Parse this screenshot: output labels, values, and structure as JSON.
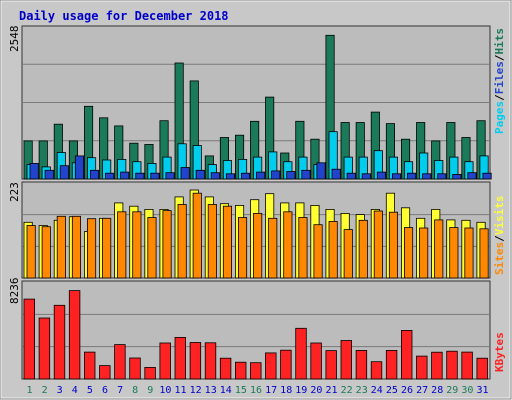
{
  "chart_data": {
    "type": "bar",
    "title": "Daily usage for December 2018",
    "categories": [
      "1",
      "2",
      "3",
      "4",
      "5",
      "6",
      "7",
      "8",
      "9",
      "10",
      "11",
      "12",
      "13",
      "14",
      "15",
      "16",
      "17",
      "18",
      "19",
      "20",
      "21",
      "22",
      "23",
      "24",
      "25",
      "26",
      "27",
      "28",
      "29",
      "30",
      "31"
    ],
    "weekend_days": [
      "1",
      "2",
      "8",
      "9",
      "15",
      "16",
      "22",
      "23",
      "29",
      "30"
    ],
    "colors": {
      "title": "#0000cc",
      "background": "#bcbcbc",
      "hits": "#1a7a5a",
      "files": "#00ccee",
      "pages": "#2244cc",
      "visits": "#ffff33",
      "sites": "#ff8800",
      "kbytes": "#ff2222",
      "weekend_label": "#1a7a5a",
      "weekday_label": "#0000cc"
    },
    "panels": [
      {
        "id": "hits",
        "ymax_label": "2548",
        "ylim": [
          0,
          2548
        ],
        "legend": [
          {
            "text": "Pages",
            "color": "#00ccee"
          },
          {
            "text": "Files",
            "color": "#2244cc"
          },
          {
            "text": "Hits",
            "color": "#1a7a5a"
          }
        ],
        "series": [
          {
            "name": "Hits",
            "values": [
              660,
              660,
              950,
              660,
              1260,
              1060,
              920,
              620,
              600,
              1010,
              2010,
              1700,
              400,
              720,
              760,
              1000,
              1420,
              450,
              1000,
              690,
              2490,
              980,
              980,
              1160,
              960,
              690,
              980,
              660,
              980,
              720,
              1010
            ]
          },
          {
            "name": "Files",
            "values": [
              250,
              210,
              460,
              280,
              370,
              330,
              340,
              300,
              270,
              380,
              610,
              580,
              250,
              320,
              340,
              380,
              470,
              300,
              380,
              250,
              820,
              380,
              380,
              490,
              380,
              300,
              450,
              320,
              380,
              300,
              400
            ]
          },
          {
            "name": "Pages",
            "values": [
              270,
              150,
              230,
              400,
              150,
              100,
              120,
              100,
              100,
              110,
              200,
              150,
              110,
              90,
              100,
              120,
              140,
              130,
              150,
              280,
              170,
              100,
              90,
              120,
              90,
              100,
              90,
              90,
              80,
              110,
              100
            ]
          }
        ]
      },
      {
        "id": "visits",
        "ymax_label": "223",
        "ylim": [
          0,
          223
        ],
        "legend": [
          {
            "text": "Sites",
            "color": "#ff8800"
          },
          {
            "text": "Visits",
            "color": "#ffff33"
          }
        ],
        "series": [
          {
            "name": "Visits",
            "values": [
              138,
              130,
              143,
              152,
              115,
              148,
              186,
              178,
              170,
              170,
              201,
              218,
              201,
              184,
              180,
              194,
              209,
              186,
              186,
              180,
              170,
              160,
              157,
              170,
              210,
              174,
              148,
              170,
              144,
              143,
              138
            ]
          },
          {
            "name": "Sites",
            "values": [
              130,
              127,
              153,
              153,
              147,
              148,
              164,
              164,
              150,
              167,
              182,
              210,
              182,
              178,
              150,
              160,
              148,
              164,
              150,
              132,
              140,
              120,
              143,
              166,
              163,
              125,
              124,
              144,
              125,
              124,
              122
            ]
          }
        ]
      },
      {
        "id": "kbytes",
        "ymax_label": "8236",
        "ylim": [
          0,
          8236
        ],
        "legend": [
          {
            "text": "KBytes",
            "color": "#ff2222"
          }
        ],
        "series": [
          {
            "name": "KBytes",
            "values": [
              7150,
              5460,
              6600,
              7910,
              2410,
              1200,
              3080,
              1880,
              1040,
              3220,
              3720,
              3270,
              3240,
              1860,
              1500,
              1460,
              2340,
              2580,
              4540,
              3220,
              2540,
              3450,
              2560,
              1550,
              2560,
              4350,
              2050,
              2400,
              2490,
              2410,
              1860
            ]
          }
        ]
      }
    ]
  }
}
